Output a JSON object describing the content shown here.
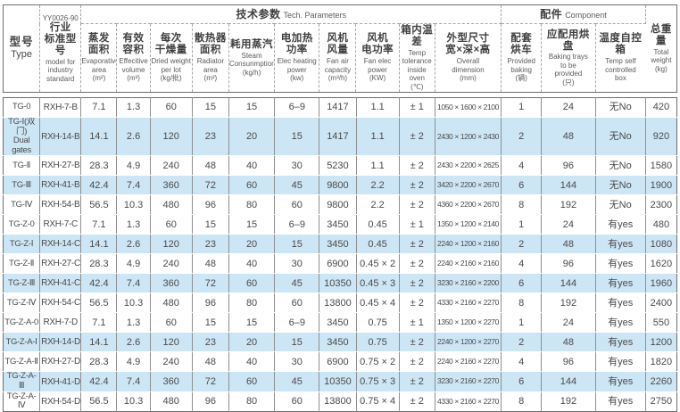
{
  "header": {
    "type": {
      "zh": "型号",
      "en": "Type"
    },
    "standard": {
      "pre": "YY0026-90",
      "zh": "行业\n标准型号",
      "en": "model for\nindustry\nstandard"
    },
    "groups": {
      "tech": {
        "zh": "技术参数",
        "en": "Tech. Parameters"
      },
      "component": {
        "zh": "配件",
        "en": "Component"
      }
    },
    "tech_columns": [
      {
        "zh": "蒸发\n面积",
        "en": "Evaporative\narea",
        "unit": "(m²)"
      },
      {
        "zh": "有效\n容积",
        "en": "Effecitive\nvolume",
        "unit": "(m³)"
      },
      {
        "zh": "每次\n干燥量",
        "en": "Dried weight\nper lot",
        "unit": "(kg/批)"
      },
      {
        "zh": "散热器\n面积",
        "en": "Radiator\narea",
        "unit": "(m²)"
      },
      {
        "zh": "耗用蒸汽",
        "en": "Steam\nConsunmption",
        "unit": "(kg/h)"
      },
      {
        "zh": "电加热\n功率",
        "en": "Elec heating\npower",
        "unit": "(kw)"
      },
      {
        "zh": "风机\n风量",
        "en": "Fan air\ncapacity",
        "unit": "(m³/h)"
      },
      {
        "zh": "风机\n电功率",
        "en": "Fan elec\npower",
        "unit": "(KW)"
      },
      {
        "zh": "箱内温差",
        "en": "Temp\ntolerance\ninside oven",
        "unit": "(℃)"
      },
      {
        "zh": "外型尺寸\n宽×深×高",
        "en": "Overall\ndimension",
        "unit": "(mm)"
      }
    ],
    "component_columns": [
      {
        "zh": "配套\n烘车",
        "en": "Provided\nbaking",
        "unit": "(辆)"
      },
      {
        "zh": "应配用烘盘",
        "en": "Baking trays\nto be\nprovided",
        "unit": "(只)"
      },
      {
        "zh": "温度自控箱",
        "en": "Temp self\ncontrolled\nbox",
        "unit": ""
      }
    ],
    "total": {
      "zh": "总重量",
      "en": "Total\nweight",
      "unit": "(kg)"
    }
  },
  "rows": [
    {
      "shaded": false,
      "cells": [
        "TG-0",
        "RXH-7-B",
        "7.1",
        "1.3",
        "60",
        "15",
        "15",
        "6–9",
        "1417",
        "1.1",
        "± 1",
        "1050 × 1600 × 2100",
        "1",
        "24",
        "无No",
        "420"
      ]
    },
    {
      "shaded": true,
      "cells": [
        "TG-Ⅰ(双门)\nDual gates",
        "RXH-14-B",
        "14.1",
        "2.6",
        "120",
        "23",
        "20",
        "15",
        "1417",
        "1.1",
        "± 2",
        "2430 × 1200 × 2430",
        "2",
        "48",
        "无No",
        "920"
      ]
    },
    {
      "shaded": false,
      "cells": [
        "TG-Ⅱ",
        "RXH-27-B",
        "28.3",
        "4.9",
        "240",
        "48",
        "40",
        "30",
        "5230",
        "1.1",
        "± 2",
        "2430 × 2200 × 2625",
        "4",
        "96",
        "无No",
        "1580"
      ]
    },
    {
      "shaded": true,
      "cells": [
        "TG-Ⅲ",
        "RXH-41-B",
        "42.4",
        "7.4",
        "360",
        "72",
        "60",
        "45",
        "9800",
        "2.2",
        "± 2",
        "3420 × 2200 × 2670",
        "6",
        "144",
        "无No",
        "1900"
      ]
    },
    {
      "shaded": false,
      "cells": [
        "TG-Ⅳ",
        "RXH-54-B",
        "56.5",
        "10.3",
        "480",
        "96",
        "80",
        "60",
        "9800",
        "2.2",
        "± 2",
        "4360 × 2200 × 2670",
        "8",
        "192",
        "无No",
        "2300"
      ]
    },
    {
      "shaded": false,
      "cells": [
        "TG-Z-0",
        "RXH-7-C",
        "7.1",
        "1.3",
        "60",
        "15",
        "15",
        "6–9",
        "3450",
        "0.45",
        "± 1",
        "1350 × 1200 × 2140",
        "1",
        "24",
        "有yes",
        "480"
      ]
    },
    {
      "shaded": true,
      "cells": [
        "TG-Z-Ⅰ",
        "RXH-14-C",
        "14.1",
        "2.6",
        "120",
        "23",
        "20",
        "15",
        "3450",
        "0.45",
        "± 2",
        "2240 × 1200 × 2160",
        "2",
        "48",
        "有yes",
        "1080"
      ]
    },
    {
      "shaded": false,
      "cells": [
        "TG-Z-Ⅱ",
        "RXH-27-C",
        "28.3",
        "4.9",
        "240",
        "48",
        "40",
        "30",
        "6900",
        "0.45 × 2",
        "± 2",
        "2240 × 2160 × 2160",
        "4",
        "96",
        "有yes",
        "1620"
      ]
    },
    {
      "shaded": true,
      "cells": [
        "TG-Z-Ⅲ",
        "RXH-41-C",
        "42.4",
        "7.4",
        "360",
        "72",
        "60",
        "45",
        "10350",
        "0.45 × 3",
        "± 2",
        "3230 × 2160 × 2200",
        "6",
        "144",
        "有yes",
        "1960"
      ]
    },
    {
      "shaded": false,
      "cells": [
        "TG-Z-Ⅳ",
        "RXH-54-C",
        "56.5",
        "10.3",
        "480",
        "96",
        "80",
        "60",
        "13800",
        "0.45 × 4",
        "± 2",
        "4330 × 2160 × 2270",
        "8",
        "192",
        "有yes",
        "2400"
      ]
    },
    {
      "shaded": false,
      "cells": [
        "TG-Z-A-0",
        "RXH-7-D",
        "7.1",
        "1.3",
        "60",
        "15",
        "15",
        "6–9",
        "3450",
        "0.75",
        "± 1",
        "1350 × 1200 × 2270",
        "1",
        "24",
        "有yes",
        "550"
      ]
    },
    {
      "shaded": true,
      "cells": [
        "TG-Z-A-Ⅰ",
        "RXH-14-D",
        "14.1",
        "2.6",
        "120",
        "23",
        "20",
        "15",
        "3450",
        "0.75",
        "± 2",
        "2240 × 1200 × 2270",
        "2",
        "48",
        "有yes",
        "1200"
      ]
    },
    {
      "shaded": false,
      "cells": [
        "TG-Z-A-Ⅱ",
        "RXH-27-D",
        "28.3",
        "4.9",
        "240",
        "48",
        "40",
        "30",
        "6900",
        "0.75 × 2",
        "± 2",
        "2240 × 2160 × 2270",
        "4",
        "96",
        "有yes",
        "1820"
      ]
    },
    {
      "shaded": true,
      "cells": [
        "TG-Z-A-Ⅲ",
        "RXH-41-D",
        "42.4",
        "7.4",
        "360",
        "72",
        "60",
        "45",
        "10350",
        "0.75 × 3",
        "± 2",
        "3230 × 2160 × 2270",
        "6",
        "144",
        "有yes",
        "2260"
      ]
    },
    {
      "shaded": false,
      "cells": [
        "TG-Z-A-Ⅳ",
        "RXH-54-D",
        "56.5",
        "10.3",
        "480",
        "96",
        "80",
        "60",
        "13800",
        "0.75 × 4",
        "± 2",
        "4330 × 2160 × 2270",
        "8",
        "192",
        "有yes",
        "2750"
      ]
    }
  ],
  "colors": {
    "stripe": "#cde6f5",
    "grid": "#8f8f8f",
    "outline": "#6e6e6e",
    "dashed": "#a5a5a5",
    "text": "#474747"
  }
}
